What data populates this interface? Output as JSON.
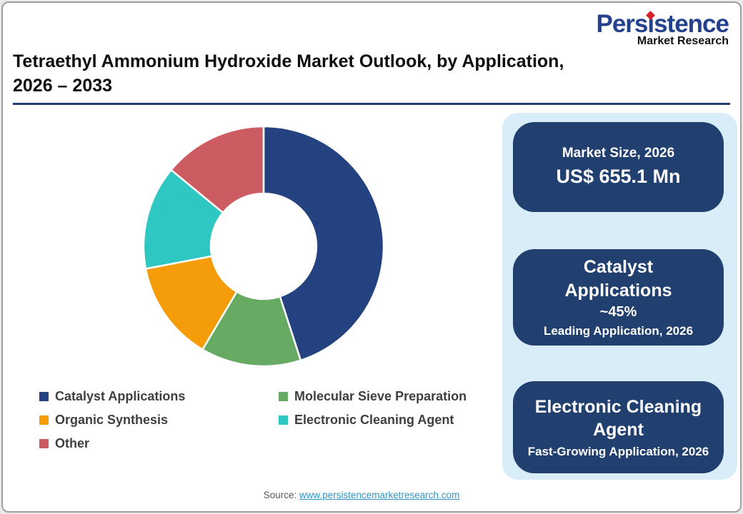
{
  "logo": {
    "brand": "Persistence",
    "subtitle": "Market Research",
    "brand_color": "#23418c",
    "dot_color": "#d8232a"
  },
  "header": {
    "title_line1": "Tetraethyl Ammonium Hydroxide Market Outlook, by Application,",
    "title_line2": "2026 – 2033",
    "rule_color": "#24426e"
  },
  "chart_data": {
    "type": "pie",
    "subtype": "donut",
    "labels": [
      "Catalyst Applications",
      "Molecular Sieve Preparation",
      "Organic Synthesis",
      "Electronic Cleaning Agent",
      "Other"
    ],
    "values": [
      45,
      13.5,
      13.5,
      14,
      14
    ],
    "unit": "percent",
    "colors": [
      "#24427f",
      "#66aa63",
      "#f59c0a",
      "#2fc7c2",
      "#cd5c62"
    ],
    "start_angle_deg": 0,
    "direction": "clockwise",
    "donut_hole_ratio": 0.44,
    "slice_gap_color": "#ffffff",
    "legend_position": "bottom-left-two-columns"
  },
  "panel": {
    "bg_color": "#d9edf8",
    "card_bg_color": "#21406f",
    "cards": [
      {
        "line1": "Market Size, 2026",
        "line2": "US$ 655.1 Mn"
      },
      {
        "title": "Catalyst Applications",
        "value": "~45%",
        "caption": "Leading Application, 2026"
      },
      {
        "title": "Electronic Cleaning Agent",
        "caption": "Fast-Growing Application, 2026"
      }
    ]
  },
  "footer": {
    "source_label": "Source:",
    "source_link": "www.persistencemarketresearch.com",
    "link_color": "#2f95c5"
  }
}
